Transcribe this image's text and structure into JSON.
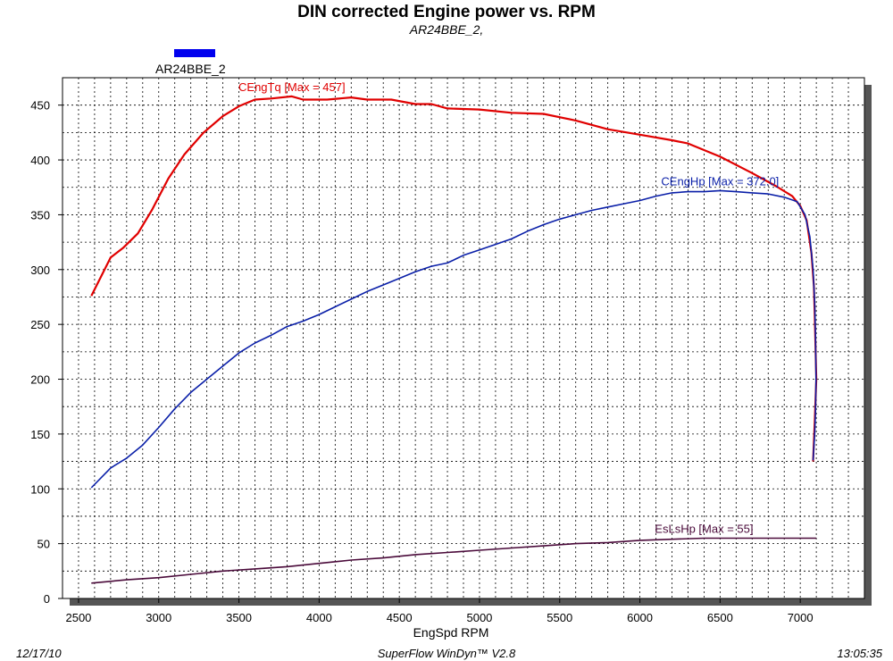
{
  "colors": {
    "torque": "#e00000",
    "power": "#0a1fa8",
    "loss": "#4a0a3a",
    "legend_swatch": "#0000ee"
  },
  "chart_data": {
    "type": "line",
    "title": "DIN corrected Engine power vs. RPM",
    "subtitle": "AR24BBE_2,",
    "legend": {
      "entries": [
        "AR24BBE_2"
      ],
      "placement": "top-left"
    },
    "xlabel": "EngSpd  RPM",
    "ylabel": "",
    "xlim": [
      2400,
      7400
    ],
    "ylim": [
      0,
      475
    ],
    "grid": true,
    "x_ticks": [
      "2500",
      "3000",
      "3500",
      "4000",
      "4500",
      "5000",
      "5500",
      "6000",
      "6500",
      "7000"
    ],
    "y_ticks": [
      "0",
      "50",
      "100",
      "150",
      "200",
      "250",
      "300",
      "350",
      "400",
      "450"
    ],
    "series": [
      {
        "name": "CEngTq",
        "annotation": "CEngTq [Max = 457]",
        "color_key": "torque",
        "points": [
          [
            2580,
            276
          ],
          [
            2700,
            311
          ],
          [
            2780,
            320
          ],
          [
            2870,
            333
          ],
          [
            2960,
            355
          ],
          [
            3060,
            383
          ],
          [
            3160,
            405
          ],
          [
            3280,
            425
          ],
          [
            3400,
            440
          ],
          [
            3500,
            449
          ],
          [
            3600,
            455
          ],
          [
            3700,
            456
          ],
          [
            3830,
            458
          ],
          [
            3900,
            455
          ],
          [
            4050,
            455
          ],
          [
            4200,
            457
          ],
          [
            4300,
            455
          ],
          [
            4450,
            455
          ],
          [
            4600,
            451
          ],
          [
            4700,
            451
          ],
          [
            4800,
            447
          ],
          [
            5000,
            446
          ],
          [
            5200,
            443
          ],
          [
            5400,
            442
          ],
          [
            5600,
            436
          ],
          [
            5800,
            428
          ],
          [
            6000,
            423
          ],
          [
            6200,
            418
          ],
          [
            6300,
            415
          ],
          [
            6500,
            403
          ],
          [
            6700,
            388
          ],
          [
            6850,
            376
          ],
          [
            6950,
            367
          ],
          [
            7000,
            358
          ],
          [
            7040,
            345
          ],
          [
            7070,
            315
          ],
          [
            7085,
            285
          ],
          [
            7090,
            260
          ],
          [
            7095,
            230
          ],
          [
            7100,
            200
          ],
          [
            7090,
            160
          ],
          [
            7080,
            125
          ]
        ]
      },
      {
        "name": "CEngHp",
        "annotation": "CEngHp [Max = 372.0]",
        "color_key": "power",
        "points": [
          [
            2580,
            101
          ],
          [
            2700,
            119
          ],
          [
            2800,
            128
          ],
          [
            2900,
            140
          ],
          [
            3000,
            156
          ],
          [
            3100,
            173
          ],
          [
            3200,
            188
          ],
          [
            3300,
            200
          ],
          [
            3400,
            212
          ],
          [
            3500,
            224
          ],
          [
            3600,
            233
          ],
          [
            3700,
            240
          ],
          [
            3800,
            248
          ],
          [
            3900,
            253
          ],
          [
            4000,
            259
          ],
          [
            4100,
            266
          ],
          [
            4200,
            273
          ],
          [
            4300,
            280
          ],
          [
            4400,
            286
          ],
          [
            4500,
            292
          ],
          [
            4600,
            298
          ],
          [
            4700,
            303
          ],
          [
            4800,
            306
          ],
          [
            4900,
            313
          ],
          [
            5000,
            318
          ],
          [
            5100,
            323
          ],
          [
            5200,
            328
          ],
          [
            5300,
            335
          ],
          [
            5400,
            341
          ],
          [
            5500,
            346
          ],
          [
            5600,
            350
          ],
          [
            5700,
            354
          ],
          [
            5800,
            357
          ],
          [
            5900,
            360
          ],
          [
            6000,
            363
          ],
          [
            6100,
            367
          ],
          [
            6200,
            370
          ],
          [
            6300,
            371
          ],
          [
            6400,
            371
          ],
          [
            6500,
            372
          ],
          [
            6600,
            371
          ],
          [
            6700,
            370
          ],
          [
            6800,
            369
          ],
          [
            6900,
            366
          ],
          [
            6980,
            362
          ],
          [
            7030,
            350
          ],
          [
            7060,
            330
          ],
          [
            7080,
            300
          ],
          [
            7090,
            270
          ],
          [
            7095,
            240
          ],
          [
            7098,
            200
          ],
          [
            7095,
            170
          ],
          [
            7090,
            150
          ],
          [
            7080,
            126
          ]
        ]
      },
      {
        "name": "EsLsHp",
        "annotation": "EsLsHp [Max = 55]",
        "color_key": "loss",
        "points": [
          [
            2580,
            14
          ],
          [
            2800,
            17
          ],
          [
            3000,
            19
          ],
          [
            3200,
            22
          ],
          [
            3400,
            25
          ],
          [
            3600,
            27
          ],
          [
            3800,
            29
          ],
          [
            4000,
            32
          ],
          [
            4200,
            35
          ],
          [
            4400,
            37
          ],
          [
            4600,
            40
          ],
          [
            4800,
            42
          ],
          [
            5000,
            44
          ],
          [
            5200,
            46
          ],
          [
            5400,
            48
          ],
          [
            5600,
            50
          ],
          [
            5800,
            51
          ],
          [
            6000,
            53
          ],
          [
            6200,
            54
          ],
          [
            6400,
            55
          ],
          [
            6600,
            55
          ],
          [
            6800,
            55
          ],
          [
            7000,
            55
          ],
          [
            7100,
            55
          ]
        ]
      }
    ]
  },
  "footer": {
    "date": "12/17/10",
    "software": "SuperFlow WinDyn™ V2.8",
    "time": "13:05:35"
  }
}
